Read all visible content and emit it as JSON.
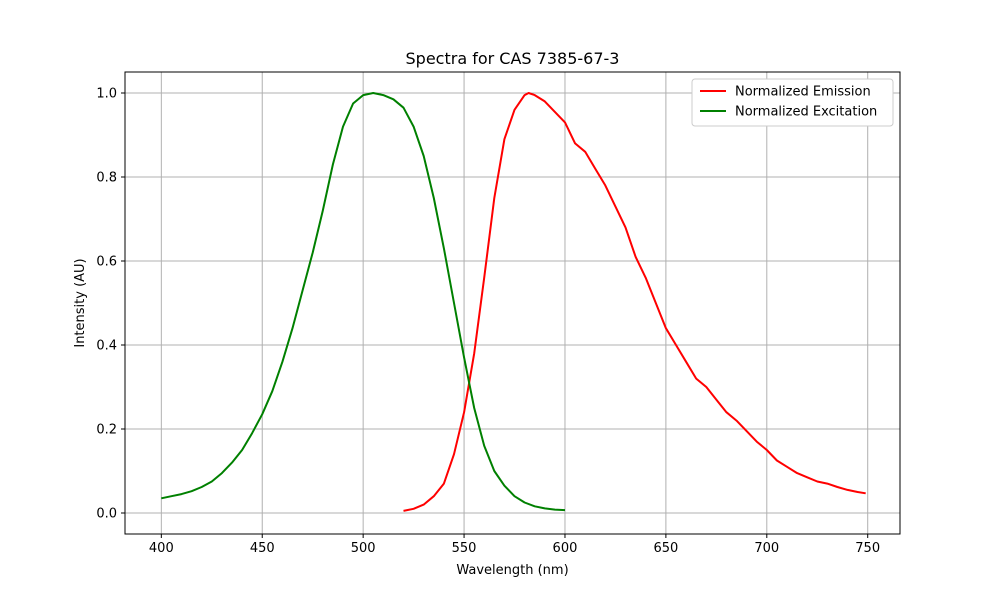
{
  "chart_data": {
    "type": "line",
    "title": "Spectra for CAS 7385-67-3",
    "xlabel": "Wavelength (nm)",
    "ylabel": "Intensity (AU)",
    "xlim": [
      382,
      766
    ],
    "ylim": [
      -0.05,
      1.05
    ],
    "xticks": [
      400,
      450,
      500,
      550,
      600,
      650,
      700,
      750
    ],
    "xtick_labels": [
      "400",
      "450",
      "500",
      "550",
      "600",
      "650",
      "700",
      "750"
    ],
    "yticks": [
      0.0,
      0.2,
      0.4,
      0.6,
      0.8,
      1.0
    ],
    "ytick_labels": [
      "0.0",
      "0.2",
      "0.4",
      "0.6",
      "0.8",
      "1.0"
    ],
    "grid": true,
    "legend_position": "upper right",
    "series": [
      {
        "name": "Normalized Emission",
        "color": "#ff0000",
        "x": [
          520,
          525,
          530,
          535,
          540,
          545,
          550,
          555,
          560,
          565,
          570,
          575,
          580,
          582,
          585,
          590,
          595,
          600,
          605,
          610,
          615,
          620,
          625,
          630,
          635,
          640,
          645,
          650,
          655,
          660,
          665,
          670,
          675,
          680,
          685,
          690,
          695,
          700,
          705,
          710,
          715,
          720,
          725,
          730,
          735,
          740,
          745,
          749
        ],
        "y": [
          0.005,
          0.01,
          0.02,
          0.04,
          0.07,
          0.14,
          0.24,
          0.38,
          0.56,
          0.75,
          0.89,
          0.96,
          0.995,
          1.0,
          0.995,
          0.98,
          0.955,
          0.93,
          0.88,
          0.86,
          0.82,
          0.78,
          0.73,
          0.68,
          0.61,
          0.56,
          0.5,
          0.44,
          0.4,
          0.36,
          0.32,
          0.3,
          0.27,
          0.24,
          0.22,
          0.195,
          0.17,
          0.15,
          0.125,
          0.11,
          0.095,
          0.085,
          0.075,
          0.07,
          0.062,
          0.055,
          0.05,
          0.047
        ]
      },
      {
        "name": "Normalized Excitation",
        "color": "#008000",
        "x": [
          400,
          405,
          410,
          415,
          420,
          425,
          430,
          435,
          440,
          445,
          450,
          455,
          460,
          465,
          470,
          475,
          480,
          485,
          490,
          495,
          500,
          505,
          510,
          515,
          520,
          525,
          530,
          535,
          540,
          545,
          550,
          555,
          560,
          565,
          570,
          575,
          580,
          585,
          590,
          595,
          600
        ],
        "y": [
          0.035,
          0.04,
          0.045,
          0.052,
          0.062,
          0.075,
          0.095,
          0.12,
          0.15,
          0.19,
          0.235,
          0.29,
          0.36,
          0.44,
          0.53,
          0.62,
          0.72,
          0.83,
          0.92,
          0.975,
          0.995,
          1.0,
          0.995,
          0.985,
          0.965,
          0.92,
          0.85,
          0.75,
          0.63,
          0.5,
          0.37,
          0.25,
          0.16,
          0.1,
          0.065,
          0.04,
          0.025,
          0.016,
          0.011,
          0.008,
          0.007
        ]
      }
    ]
  }
}
